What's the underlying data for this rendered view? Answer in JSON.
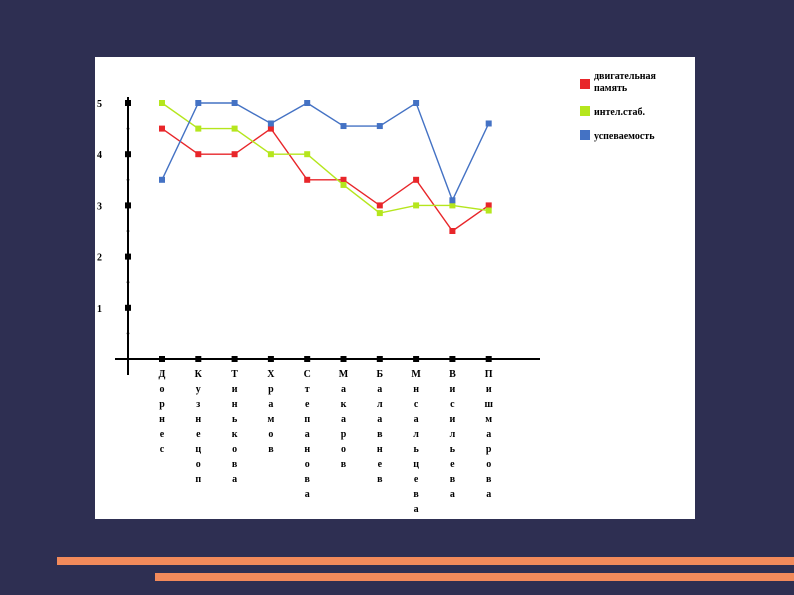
{
  "chart_data": {
    "type": "line",
    "title": "",
    "xlabel": "",
    "ylabel": "",
    "ylim": [
      0,
      5
    ],
    "yticks": [
      "1",
      "2",
      "3",
      "4",
      "5"
    ],
    "categories": [
      "Дорнес",
      "Кузнецоп",
      "Тиньковa",
      "Храмов",
      "Степанова",
      "Макаров",
      "Балавнев",
      "Мнсальцева",
      "Висильевa",
      "Пишмарова"
    ],
    "series": [
      {
        "name": "двигательная память",
        "color": "#e8262a",
        "values": [
          4.5,
          4.0,
          4.0,
          4.5,
          3.5,
          3.5,
          3.0,
          3.5,
          2.5,
          3.0
        ]
      },
      {
        "name": "интел.стаб.",
        "color": "#b5e61d",
        "values": [
          5.0,
          4.5,
          4.5,
          4.0,
          4.0,
          3.4,
          2.85,
          3.0,
          3.0,
          2.9
        ]
      },
      {
        "name": "успеваемость",
        "color": "#4472c4",
        "values": [
          3.5,
          5.0,
          5.0,
          4.6,
          5.0,
          4.55,
          4.55,
          5.0,
          3.1,
          4.6
        ]
      }
    ],
    "legend_position": "top-right",
    "grid": false
  }
}
